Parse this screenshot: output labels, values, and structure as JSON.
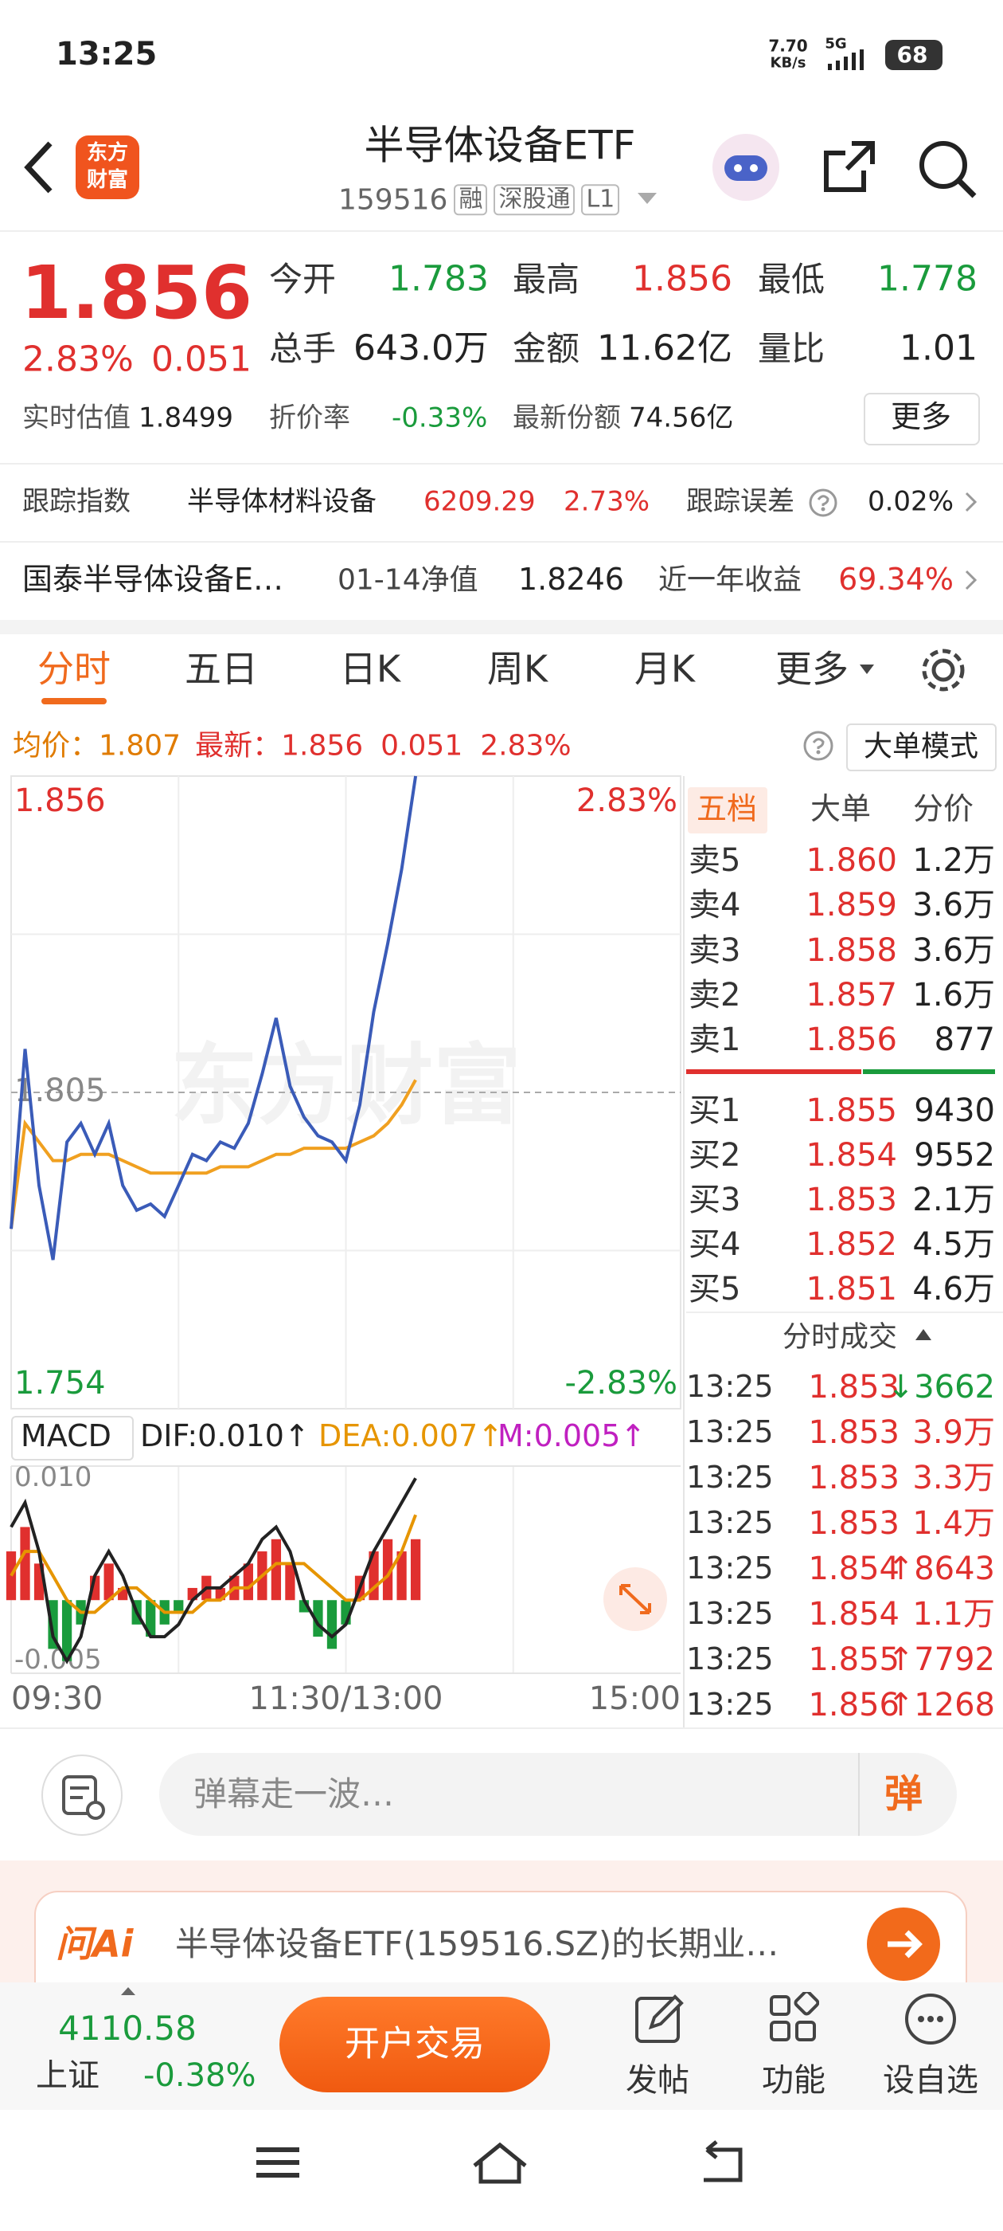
{
  "status": {
    "time": "13:25",
    "speed": "7.70",
    "speed_unit": "KB/s",
    "network": "5G",
    "battery": "68"
  },
  "header": {
    "logo": [
      "东方",
      "财富"
    ],
    "title": "半导体设备ETF",
    "code": "159516",
    "tags": [
      "融",
      "深股通",
      "L1"
    ]
  },
  "quote": {
    "price": "1.856",
    "change_pct": "2.83%",
    "change": "0.051",
    "color": "#e0302e",
    "stats": [
      {
        "label": "今开",
        "value": "1.783",
        "color": "#1a9b3c"
      },
      {
        "label": "最高",
        "value": "1.856",
        "color": "#e0302e"
      },
      {
        "label": "最低",
        "value": "1.778",
        "color": "#1a9b3c"
      },
      {
        "label": "总手",
        "value": "643.0万",
        "color": "#222"
      },
      {
        "label": "金额",
        "value": "11.62亿",
        "color": "#222"
      },
      {
        "label": "量比",
        "value": "1.01",
        "color": "#222"
      }
    ],
    "extra": [
      {
        "label": "实时估值",
        "value": "1.8499",
        "color": "#222"
      },
      {
        "label": "折价率",
        "value": "-0.33%",
        "color": "#1a9b3c"
      },
      {
        "label": "最新份额",
        "value": "74.56亿",
        "color": "#222"
      }
    ],
    "more": "更多"
  },
  "tracking": {
    "label": "跟踪指数",
    "index": "半导体材料设备",
    "value": "6209.29",
    "pct": "2.73%",
    "error_label": "跟踪误差",
    "error": "0.02%"
  },
  "fund": {
    "name": "国泰半导体设备E…",
    "nav_label": "01-14净值",
    "nav": "1.8246",
    "return_label": "近一年收益",
    "return": "69.34%"
  },
  "tabs": [
    "分时",
    "五日",
    "日K",
    "周K",
    "月K",
    "更多"
  ],
  "info": {
    "avg_label": "均价：",
    "avg": "1.807",
    "last_label": "最新：",
    "last": "1.856",
    "change": "0.051",
    "pct": "2.83%",
    "mode": "大单模式"
  },
  "watermark": "东方财富",
  "chart_data": [
    {
      "type": "line",
      "xlim": [
        0,
        240
      ],
      "xticks": [
        {
          "value": 0,
          "label": "09:30"
        },
        {
          "value": 120,
          "label": "11:30/13:00"
        },
        {
          "value": 240,
          "label": "15:00"
        }
      ],
      "ylim": [
        1.754,
        1.856
      ],
      "yticks": [
        1.856,
        1.805,
        1.754
      ],
      "ytick_colors": [
        "#e0302e",
        "#888888",
        "#1a9b3c"
      ],
      "y2lim": [
        -2.83,
        2.83
      ],
      "y2ticks": [
        {
          "value": 2.83,
          "label": "2.83%"
        },
        {
          "value": -2.83,
          "label": "-2.83%"
        }
      ],
      "x": [
        0,
        5,
        10,
        15,
        20,
        25,
        30,
        35,
        40,
        45,
        50,
        55,
        60,
        65,
        70,
        75,
        80,
        85,
        90,
        95,
        100,
        105,
        110,
        115,
        120,
        125,
        130,
        135,
        140,
        145
      ],
      "series": [
        {
          "color": "#3a5bb8",
          "values": [
            1.783,
            1.812,
            1.79,
            1.778,
            1.797,
            1.8,
            1.795,
            1.8,
            1.79,
            1.786,
            1.787,
            1.785,
            1.79,
            1.795,
            1.794,
            1.797,
            1.796,
            1.8,
            1.808,
            1.817,
            1.806,
            1.801,
            1.798,
            1.797,
            1.794,
            1.803,
            1.818,
            1.829,
            1.841,
            1.856
          ]
        },
        {
          "color": "#f0a020",
          "values": [
            1.783,
            1.8,
            1.797,
            1.794,
            1.794,
            1.795,
            1.795,
            1.795,
            1.794,
            1.793,
            1.792,
            1.792,
            1.792,
            1.792,
            1.792,
            1.793,
            1.793,
            1.793,
            1.794,
            1.795,
            1.795,
            1.796,
            1.796,
            1.796,
            1.796,
            1.797,
            1.798,
            1.8,
            1.803,
            1.807
          ]
        }
      ]
    },
    {
      "type": "bar",
      "title": "MACD",
      "dif_label": "DIF:0.010↑",
      "dea_label": "DEA:0.007↑",
      "m_label": "M:0.005↑",
      "xlim": [
        0,
        240
      ],
      "ylim": [
        -0.006,
        0.011
      ],
      "yticks": [
        {
          "value": 0.01,
          "label": "0.010"
        },
        {
          "value": -0.005,
          "label": "-0.005"
        }
      ],
      "x": [
        0,
        5,
        10,
        15,
        20,
        25,
        30,
        35,
        40,
        45,
        50,
        55,
        60,
        65,
        70,
        75,
        80,
        85,
        90,
        95,
        100,
        105,
        110,
        115,
        120,
        125,
        130,
        135,
        140,
        145
      ],
      "values": [
        0.004,
        0.006,
        0.003,
        -0.004,
        -0.005,
        -0.002,
        0.002,
        0.003,
        0.001,
        -0.002,
        -0.003,
        -0.002,
        -0.001,
        0.001,
        0.002,
        0.001,
        0.002,
        0.003,
        0.004,
        0.005,
        0.003,
        -0.001,
        -0.003,
        -0.004,
        -0.002,
        0.002,
        0.004,
        0.005,
        0.004,
        0.005
      ],
      "colors": [
        "#e0302e",
        "#1a9b3c"
      ],
      "series": [
        {
          "color": "#222222",
          "values": [
            0.006,
            0.008,
            0.004,
            -0.003,
            -0.005,
            -0.003,
            0.002,
            0.004,
            0.002,
            -0.001,
            -0.003,
            -0.003,
            -0.002,
            0.0,
            0.001,
            0.001,
            0.002,
            0.003,
            0.005,
            0.006,
            0.004,
            0.0,
            -0.002,
            -0.003,
            -0.002,
            0.001,
            0.004,
            0.006,
            0.008,
            0.01
          ]
        },
        {
          "color": "#e69500",
          "values": [
            0.002,
            0.004,
            0.004,
            0.002,
            0.0,
            -0.001,
            -0.001,
            0.0,
            0.001,
            0.001,
            0.0,
            -0.001,
            -0.001,
            -0.001,
            0.0,
            0.0,
            0.001,
            0.001,
            0.002,
            0.003,
            0.003,
            0.003,
            0.002,
            0.001,
            0.0,
            0.0,
            0.001,
            0.002,
            0.004,
            0.007
          ]
        }
      ]
    }
  ],
  "order_book": {
    "tabs": [
      "五档",
      "大单",
      "分价"
    ],
    "asks": [
      {
        "label": "卖5",
        "price": "1.860",
        "vol": "1.2万"
      },
      {
        "label": "卖4",
        "price": "1.859",
        "vol": "3.6万"
      },
      {
        "label": "卖3",
        "price": "1.858",
        "vol": "3.6万"
      },
      {
        "label": "卖2",
        "price": "1.857",
        "vol": "1.6万"
      },
      {
        "label": "卖1",
        "price": "1.856",
        "vol": "877"
      }
    ],
    "bids": [
      {
        "label": "买1",
        "price": "1.855",
        "vol": "9430"
      },
      {
        "label": "买2",
        "price": "1.854",
        "vol": "9552"
      },
      {
        "label": "买3",
        "price": "1.853",
        "vol": "2.1万"
      },
      {
        "label": "买4",
        "price": "1.852",
        "vol": "4.5万"
      },
      {
        "label": "买5",
        "price": "1.851",
        "vol": "4.6万"
      }
    ],
    "trades_title": "分时成交",
    "trades": [
      {
        "time": "13:25",
        "price": "1.853",
        "vol": "↓3662",
        "color": "#1a9b3c"
      },
      {
        "time": "13:25",
        "price": "1.853",
        "vol": "3.9万",
        "color": "#e0302e"
      },
      {
        "time": "13:25",
        "price": "1.853",
        "vol": "3.3万",
        "color": "#e0302e"
      },
      {
        "time": "13:25",
        "price": "1.853",
        "vol": "1.4万",
        "color": "#e0302e"
      },
      {
        "time": "13:25",
        "price": "1.854",
        "vol": "↑8643",
        "color": "#e0302e"
      },
      {
        "time": "13:25",
        "price": "1.854",
        "vol": "1.1万",
        "color": "#e0302e"
      },
      {
        "time": "13:25",
        "price": "1.855",
        "vol": "↑7792",
        "color": "#e0302e"
      },
      {
        "time": "13:25",
        "price": "1.856",
        "vol": "↑1268",
        "color": "#e0302e"
      }
    ]
  },
  "comment": {
    "placeholder": "弹幕走一波…",
    "button": "弹"
  },
  "ai": {
    "badge": "问Ai",
    "text": "半导体设备ETF(159516.SZ)的长期业…"
  },
  "bottom": {
    "index_value": "4110.58",
    "index_name": "上证",
    "index_pct": "-0.38%",
    "trade": "开户交易",
    "actions": [
      "发帖",
      "功能",
      "设自选"
    ]
  }
}
